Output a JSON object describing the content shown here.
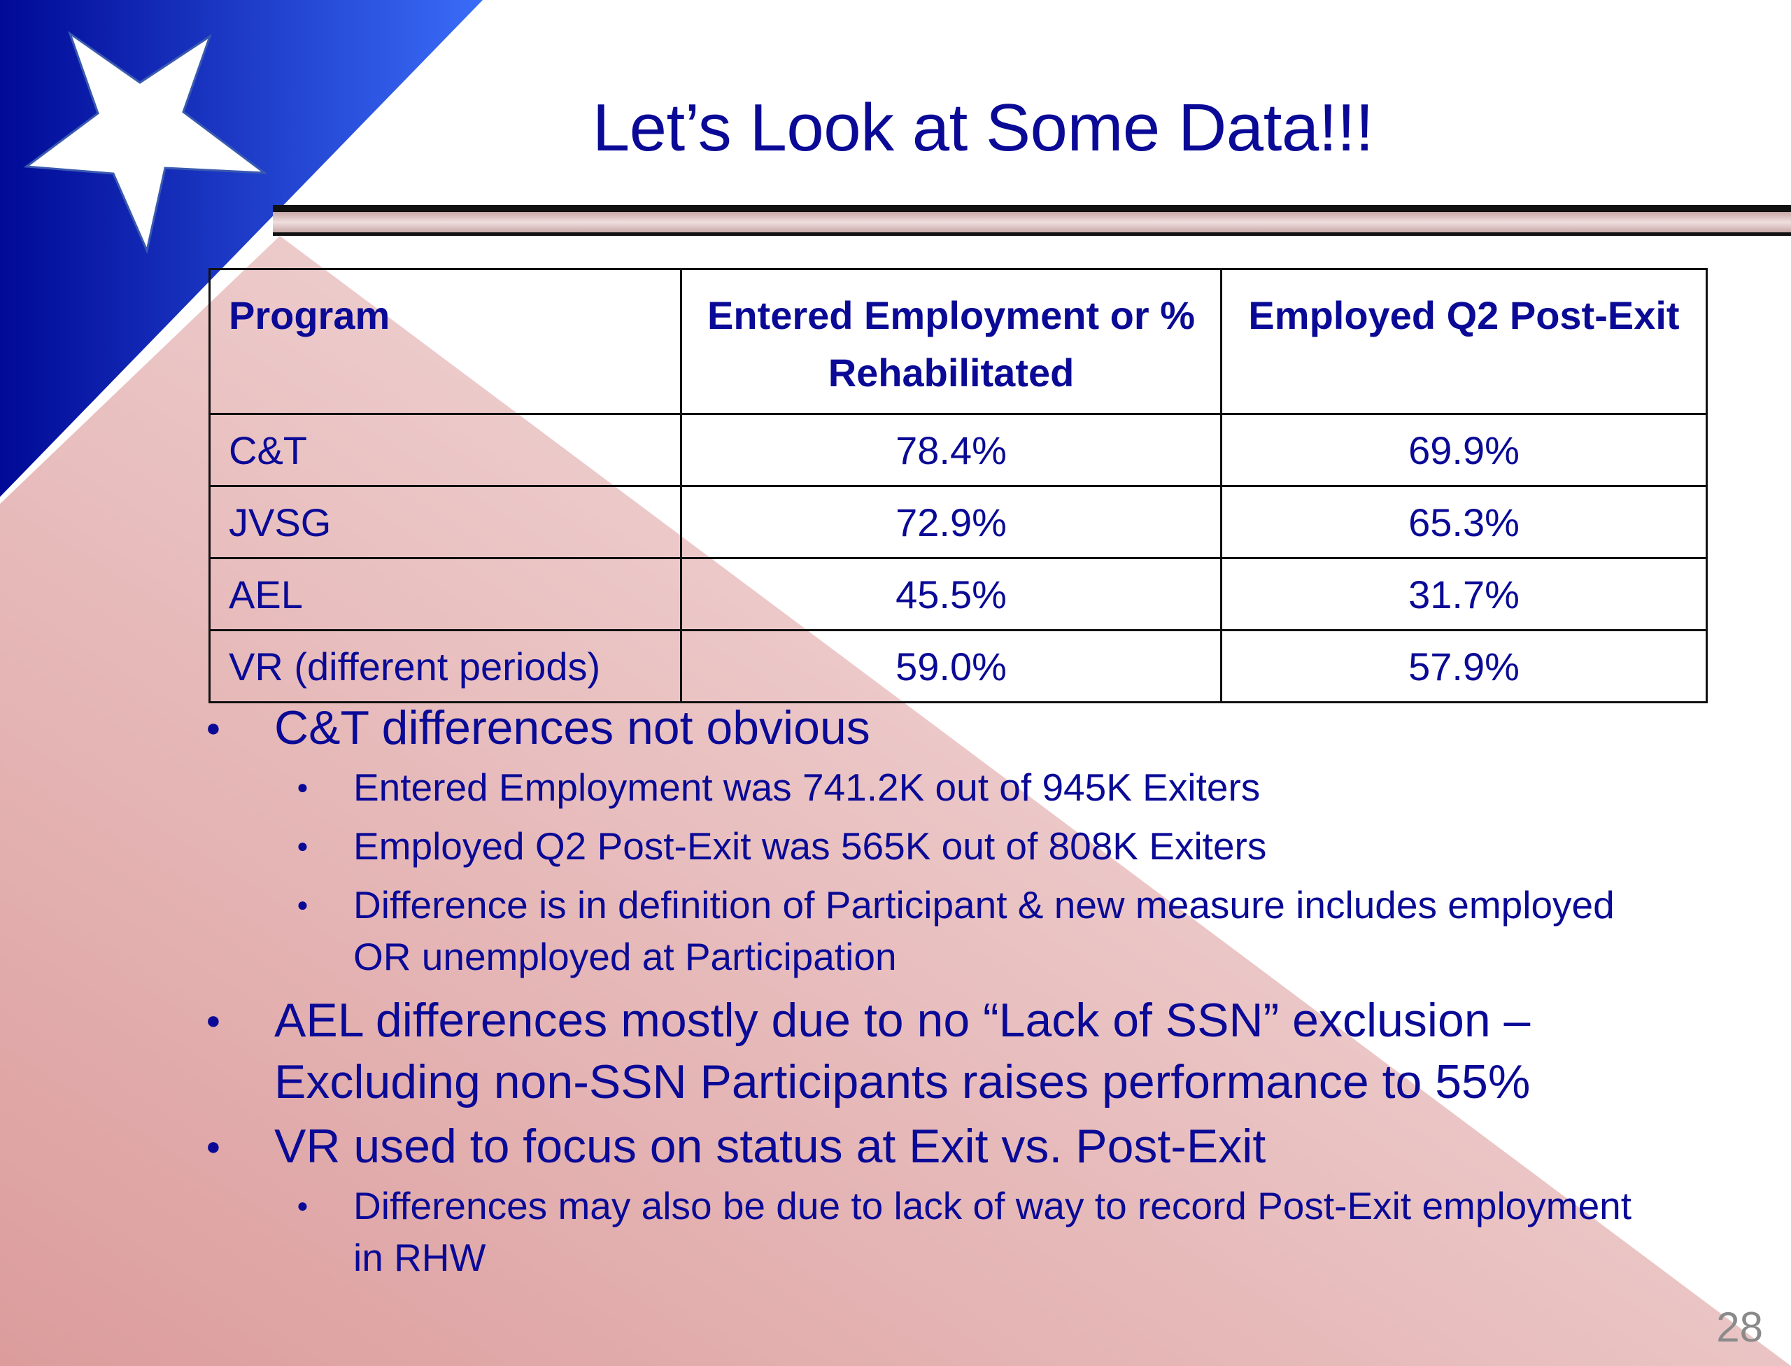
{
  "slide": {
    "title": "Let’s Look at Some Data!!!",
    "page_number": "28"
  },
  "table": {
    "headers": [
      "Program",
      "Entered Employment or % Rehabilitated",
      "Employed Q2 Post-Exit"
    ],
    "rows": [
      [
        "C&T",
        "78.4%",
        "69.9%"
      ],
      [
        "JVSG",
        "72.9%",
        "65.3%"
      ],
      [
        "AEL",
        "45.5%",
        "31.7%"
      ],
      [
        "VR (different periods)",
        "59.0%",
        "57.9%"
      ]
    ]
  },
  "bullets": {
    "ct": {
      "text": "C&T differences not obvious",
      "sub": [
        "Entered Employment was 741.2K out of 945K Exiters",
        "Employed Q2 Post-Exit was 565K out of 808K Exiters",
        "Difference is in definition of Participant & new measure includes employed OR unemployed at Participation"
      ]
    },
    "ael": {
      "text": "AEL differences mostly due to no “Lack of SSN” exclusion – Excluding non-SSN Participants raises performance to 55%"
    },
    "vr": {
      "text": "VR used to focus on status at Exit vs. Post-Exit",
      "sub": [
        "Differences may also be due to lack of way to record Post-Exit employment in RHW"
      ]
    }
  },
  "colors": {
    "text": "#0a0a96",
    "flag_blue": "#0a14a0",
    "flag_red": "#d98f8f"
  }
}
